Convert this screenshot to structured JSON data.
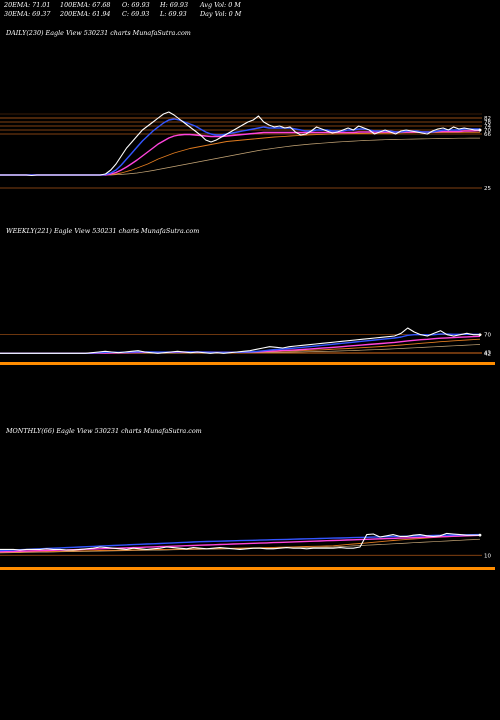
{
  "header": {
    "ema20": "20EMA: 71.01",
    "ema30": "30EMA: 69.37",
    "ema100": "100EMA: 67.68",
    "ema200": "200EMA: 61.94",
    "open": "O: 69.93",
    "close": "C: 69.93",
    "high": "H: 69.93",
    "low": "L: 69.93",
    "avg_vol": "Avg Vol: 0  M",
    "day_vol": "Day Vol: 0  M"
  },
  "colors": {
    "background": "#000000",
    "price": "#ffffff",
    "ema_blue": "#3355ff",
    "ema_magenta": "#ff44dd",
    "ema_orange": "#e07b1f",
    "ema_tan": "#c8a878",
    "grid_orange": "#c0621b",
    "volume_orange": "#ff8c00"
  },
  "chart_data": [
    {
      "type": "line",
      "title": "DAILY(230) Eagle  View  530231 charts MunafaSutra.com",
      "right_labels": [
        "82",
        "78",
        "74",
        "70",
        "66",
        "25"
      ],
      "price": [
        25,
        25,
        25,
        25,
        25,
        25,
        24.5,
        25,
        25,
        25,
        25,
        25,
        25,
        25,
        25,
        25,
        25,
        25,
        25,
        25,
        26,
        30,
        36,
        44,
        52,
        58,
        64,
        70,
        74,
        78,
        82,
        86,
        88,
        85,
        81,
        77,
        73,
        69,
        65,
        60,
        58,
        60,
        63,
        66,
        69,
        72,
        75,
        78,
        80,
        84,
        78,
        75,
        73,
        74,
        72,
        73,
        68,
        65,
        66,
        69,
        73,
        71,
        69,
        67,
        68,
        70,
        72,
        70,
        74,
        72,
        70,
        66,
        68,
        70,
        68,
        66,
        69,
        70,
        69,
        68,
        67,
        66,
        69,
        71,
        72,
        70,
        73,
        71,
        72,
        71,
        70,
        69.93
      ],
      "ema_fast": [
        25,
        25,
        25,
        25,
        25,
        25,
        25,
        25,
        25,
        25,
        25,
        25,
        25,
        25,
        25,
        25,
        25,
        25,
        25,
        25,
        25.5,
        27,
        30,
        35,
        41,
        47,
        53,
        59,
        64,
        69,
        73,
        77,
        80,
        81,
        80,
        78,
        76,
        74,
        71,
        68,
        66,
        65,
        65,
        66,
        67,
        68,
        69,
        70,
        71,
        72,
        73,
        72,
        72,
        72,
        72,
        72,
        71,
        70,
        69,
        69,
        70,
        70,
        70,
        69,
        69,
        69,
        70,
        70,
        71,
        71,
        70,
        69,
        69,
        69,
        69,
        68,
        68,
        69,
        69,
        69,
        68,
        68,
        68,
        69,
        70,
        70,
        70,
        70,
        71,
        71,
        71,
        71
      ],
      "ema_mid": [
        25,
        25,
        25,
        25,
        25,
        25,
        25,
        25,
        25,
        25,
        25,
        25,
        25,
        25,
        25,
        25,
        25,
        25,
        25,
        25,
        25,
        26,
        27.5,
        30,
        33,
        36.5,
        40,
        44,
        48,
        52,
        56,
        59,
        62,
        64,
        65,
        65.5,
        65.5,
        65,
        64.5,
        64,
        63.5,
        63.5,
        63.5,
        64,
        64.5,
        65,
        65.5,
        66,
        66.5,
        67,
        67.5,
        67.5,
        67.5,
        67.5,
        67.5,
        67.5,
        67.5,
        67.5,
        67.5,
        67.5,
        67.5,
        67.5,
        67.5,
        67.5,
        67.5,
        67.5,
        67.5,
        67.5,
        68,
        68,
        68,
        68,
        68,
        68,
        68,
        68,
        68,
        68,
        68,
        68,
        68,
        68,
        68,
        68.5,
        68.5,
        68.5,
        68.5,
        68.5,
        69,
        69,
        69.2,
        69.37
      ],
      "ema_slow": [
        25,
        25,
        25,
        25,
        25,
        25,
        25,
        25,
        25,
        25,
        25,
        25,
        25,
        25,
        25,
        25,
        25,
        25,
        25,
        25,
        25,
        25.5,
        26,
        27,
        28.5,
        30,
        32,
        34,
        36,
        38.5,
        41,
        43,
        45,
        47,
        48.5,
        50,
        51.5,
        52.5,
        53.5,
        54.5,
        55.5,
        56.5,
        57.5,
        58.5,
        59,
        59.5,
        60,
        60.5,
        61,
        61.5,
        62,
        62.5,
        63,
        63.3,
        63.6,
        64,
        64.3,
        64.6,
        65,
        65.2,
        65.4,
        65.6,
        65.8,
        66,
        66.1,
        66.2,
        66.3,
        66.4,
        66.5,
        66.6,
        66.7,
        66.8,
        66.9,
        67,
        67,
        67.1,
        67.2,
        67.3,
        67.3,
        67.4,
        67.4,
        67.5,
        67.5,
        67.5,
        67.6,
        67.6,
        67.6,
        67.6,
        67.7,
        67.7,
        67.7,
        67.68
      ],
      "ema_base": [
        25,
        25,
        25,
        25,
        25,
        25,
        25,
        25,
        25,
        25,
        25,
        25,
        25,
        25,
        25,
        25,
        25,
        25,
        25,
        25,
        25,
        25,
        25.3,
        25.6,
        26,
        26.5,
        27,
        27.8,
        28.6,
        29.5,
        30.5,
        31.5,
        32.5,
        33.5,
        34.5,
        35.5,
        36.5,
        37.5,
        38.5,
        39.5,
        40.5,
        41.5,
        42.5,
        43.5,
        44.5,
        45.5,
        46.5,
        47.5,
        48.5,
        49.5,
        50.3,
        51,
        51.8,
        52.5,
        53.2,
        53.9,
        54.5,
        55,
        55.5,
        56,
        56.4,
        56.8,
        57.2,
        57.6,
        58,
        58.3,
        58.6,
        58.9,
        59.2,
        59.5,
        59.7,
        59.9,
        60.1,
        60.3,
        60.5,
        60.6,
        60.7,
        60.8,
        60.9,
        61,
        61.1,
        61.2,
        61.3,
        61.4,
        61.5,
        61.6,
        61.7,
        61.8,
        61.85,
        61.9,
        61.92,
        61.94
      ]
    },
    {
      "type": "line",
      "title": "WEEKLY(221) Eagle  View  530231 charts MunafaSutra.com",
      "right_labels": [
        "70",
        "43",
        "42"
      ],
      "price": [
        42,
        42,
        42,
        42,
        42,
        42,
        42,
        42,
        42,
        42,
        42,
        42,
        42,
        42,
        43,
        44,
        45,
        44,
        43,
        44,
        45,
        46,
        44,
        43,
        42,
        43,
        44,
        45,
        44,
        43,
        44,
        43,
        42,
        43,
        42,
        43,
        44,
        45,
        46,
        48,
        50,
        52,
        51,
        50,
        52,
        53,
        54,
        55,
        56,
        57,
        58,
        59,
        60,
        61,
        62,
        63,
        64,
        65,
        66,
        67,
        68,
        72,
        80,
        74,
        70,
        68,
        72,
        76,
        70,
        68,
        70,
        72,
        70,
        69.93
      ],
      "ema_fast": [
        42,
        42,
        42,
        42,
        42,
        42,
        42,
        42,
        42,
        42,
        42,
        42,
        42,
        42,
        42.5,
        43,
        43.5,
        43.5,
        43.5,
        43.6,
        44,
        44.3,
        44.2,
        44,
        43.8,
        43.8,
        43.9,
        44.1,
        44.1,
        44,
        44,
        43.9,
        43.7,
        43.6,
        43.5,
        43.5,
        43.6,
        43.8,
        44.2,
        44.9,
        45.8,
        46.9,
        47.8,
        48.4,
        49.2,
        50.1,
        51,
        52,
        53,
        54,
        55,
        56,
        57,
        58,
        59,
        60,
        61,
        62,
        63,
        64,
        65,
        66.5,
        69,
        70,
        70,
        69.8,
        70,
        71,
        70.8,
        70.5,
        70.5,
        70.7,
        70.6,
        70.5
      ],
      "ema_mid": [
        42,
        42,
        42,
        42,
        42,
        42,
        42,
        42,
        42,
        42,
        42,
        42,
        42,
        42,
        42.1,
        42.3,
        42.5,
        42.7,
        42.8,
        43,
        43.2,
        43.4,
        43.5,
        43.5,
        43.5,
        43.5,
        43.6,
        43.7,
        43.8,
        43.8,
        43.8,
        43.8,
        43.8,
        43.7,
        43.7,
        43.7,
        43.7,
        43.8,
        44,
        44.3,
        44.7,
        45.2,
        45.7,
        46.1,
        46.6,
        47.2,
        47.8,
        48.4,
        49.1,
        49.8,
        50.5,
        51.2,
        52,
        52.8,
        53.6,
        54.4,
        55.2,
        56,
        56.8,
        57.6,
        58.4,
        59.4,
        60.6,
        61.6,
        62.4,
        63.1,
        63.9,
        64.7,
        65.2,
        65.7,
        66.2,
        66.7,
        67.1,
        67.5
      ],
      "ema_slow": [
        42,
        42,
        42,
        42,
        42,
        42,
        42,
        42,
        42,
        42,
        42,
        42,
        42,
        42,
        42,
        42.1,
        42.2,
        42.3,
        42.4,
        42.5,
        42.6,
        42.7,
        42.8,
        42.9,
        43,
        43,
        43.1,
        43.2,
        43.3,
        43.3,
        43.4,
        43.4,
        43.5,
        43.5,
        43.5,
        43.6,
        43.6,
        43.7,
        43.8,
        44,
        44.2,
        44.5,
        44.8,
        45.1,
        45.4,
        45.7,
        46.1,
        46.5,
        46.9,
        47.3,
        47.8,
        48.3,
        48.8,
        49.3,
        49.9,
        50.5,
        51.1,
        51.7,
        52.3,
        53,
        53.7,
        54.5,
        55.4,
        56.2,
        57,
        57.8,
        58.6,
        59.4,
        60.1,
        60.8,
        61.4,
        62,
        62.6,
        63.2
      ],
      "ema_base": [
        42,
        42,
        42,
        42,
        42,
        42,
        42,
        42,
        42,
        42,
        42,
        42,
        42,
        42,
        42,
        42,
        42,
        42,
        42.1,
        42.1,
        42.2,
        42.2,
        42.3,
        42.3,
        42.4,
        42.4,
        42.5,
        42.5,
        42.6,
        42.6,
        42.7,
        42.7,
        42.8,
        42.8,
        42.9,
        42.9,
        43,
        43,
        43.1,
        43.2,
        43.3,
        43.4,
        43.5,
        43.6,
        43.8,
        44,
        44.2,
        44.4,
        44.6,
        44.8,
        45.1,
        45.4,
        45.7,
        46,
        46.3,
        46.7,
        47.1,
        47.5,
        47.9,
        48.3,
        48.8,
        49.3,
        49.8,
        50.3,
        50.8,
        51.3,
        51.8,
        52.3,
        52.8,
        53.3,
        53.8,
        54.3,
        54.8,
        55.3
      ]
    },
    {
      "type": "line",
      "title": "MONTHLY(66) Eagle  View  530231 charts MunafaSutra.com",
      "right_labels": [
        "10"
      ],
      "price": [
        20,
        20,
        20,
        19,
        20,
        20,
        20,
        21,
        20,
        20,
        19,
        19,
        20,
        21,
        22,
        24,
        23,
        22,
        21,
        20,
        22,
        21,
        20,
        21,
        22,
        24,
        23,
        22,
        21,
        23,
        22,
        21,
        22,
        23,
        22,
        21,
        20,
        21,
        22,
        22,
        21,
        21,
        22,
        23,
        22,
        22,
        21,
        22,
        22,
        22,
        22,
        23,
        22,
        22,
        24,
        45,
        46,
        41,
        43,
        45,
        42,
        42,
        44,
        45,
        43,
        42,
        43,
        47,
        46,
        45,
        44,
        44,
        44
      ],
      "ema_fast": [
        18,
        18.5,
        19,
        19.5,
        20,
        20.5,
        21,
        21.5,
        22,
        22.5,
        23,
        23.5,
        24,
        24.5,
        25,
        25.5,
        26,
        26.5,
        27,
        27.5,
        28,
        28.5,
        29,
        29.5,
        30,
        30.5,
        31,
        31.5,
        32,
        32.5,
        33,
        33.3,
        33.6,
        33.9,
        34.2,
        34.5,
        34.8,
        35.1,
        35.4,
        35.7,
        36,
        36.3,
        36.6,
        36.9,
        37.2,
        37.5,
        37.8,
        38.1,
        38.4,
        38.7,
        39,
        39.3,
        39.6,
        39.9,
        40.2,
        40.5,
        40.8,
        41.1,
        41.4,
        41.7,
        42,
        42.3,
        42.6,
        42.9,
        43.2,
        43.5,
        43.8,
        44,
        44.2,
        44.4,
        44.6,
        44.8,
        45
      ],
      "ema_mid": [
        16,
        16.3,
        16.6,
        16.9,
        17.2,
        17.5,
        17.8,
        18.1,
        18.4,
        18.7,
        19,
        19.4,
        19.8,
        20.2,
        20.6,
        21,
        21.4,
        21.8,
        22.2,
        22.6,
        23,
        23.4,
        23.8,
        24.2,
        24.6,
        25,
        25.4,
        25.8,
        26.2,
        26.6,
        27,
        27.4,
        27.8,
        28.2,
        28.6,
        29,
        29.4,
        29.8,
        30.2,
        30.6,
        31,
        31.4,
        31.8,
        32.2,
        32.6,
        33,
        33.4,
        33.8,
        34.2,
        34.6,
        35,
        35.4,
        35.8,
        36.2,
        36.6,
        37,
        37.4,
        37.8,
        38.2,
        38.6,
        39,
        39.4,
        39.8,
        40.2,
        40.6,
        41,
        41.4,
        41.8,
        42.2,
        42.6,
        43,
        43.4,
        43.8
      ],
      "ema_slow": [
        15,
        15.2,
        15.4,
        15.6,
        15.8,
        16,
        16.2,
        16.4,
        16.6,
        16.8,
        17,
        17.2,
        17.4,
        17.6,
        17.8,
        18,
        18.2,
        18.4,
        18.6,
        18.8,
        19,
        19.2,
        19.4,
        19.6,
        19.8,
        20,
        20.2,
        20.4,
        20.6,
        20.8,
        21,
        21.2,
        21.4,
        21.6,
        21.8,
        22,
        22.2,
        22.4,
        22.6,
        22.8,
        23,
        23.3,
        23.6,
        23.9,
        24.2,
        24.5,
        24.8,
        25.1,
        25.4,
        25.7,
        26,
        27,
        28,
        29,
        30,
        31,
        32,
        33,
        34,
        35,
        36,
        36.8,
        37.6,
        38.4,
        39.2,
        40,
        40.6,
        41.2,
        41.8,
        42.4,
        43,
        43.4,
        43.8
      ],
      "ema_base": [
        14,
        14.2,
        14.4,
        14.6,
        14.8,
        15,
        15.2,
        15.4,
        15.6,
        15.8,
        16,
        16.2,
        16.4,
        16.6,
        16.8,
        17,
        17.2,
        17.4,
        17.6,
        17.8,
        18,
        18.2,
        18.4,
        18.6,
        18.8,
        19,
        19.2,
        19.4,
        19.6,
        19.8,
        20,
        20.2,
        20.4,
        20.6,
        20.8,
        21,
        21.2,
        21.4,
        21.6,
        21.8,
        22,
        22.2,
        22.4,
        22.6,
        22.8,
        23,
        23.2,
        23.4,
        23.6,
        23.8,
        24,
        24.6,
        25.2,
        25.8,
        26.4,
        27,
        27.6,
        28.2,
        28.8,
        29.4,
        30,
        30.6,
        31.2,
        31.8,
        32.4,
        33,
        33.6,
        34.2,
        34.8,
        35.4,
        36,
        36.6,
        37.2
      ]
    }
  ]
}
